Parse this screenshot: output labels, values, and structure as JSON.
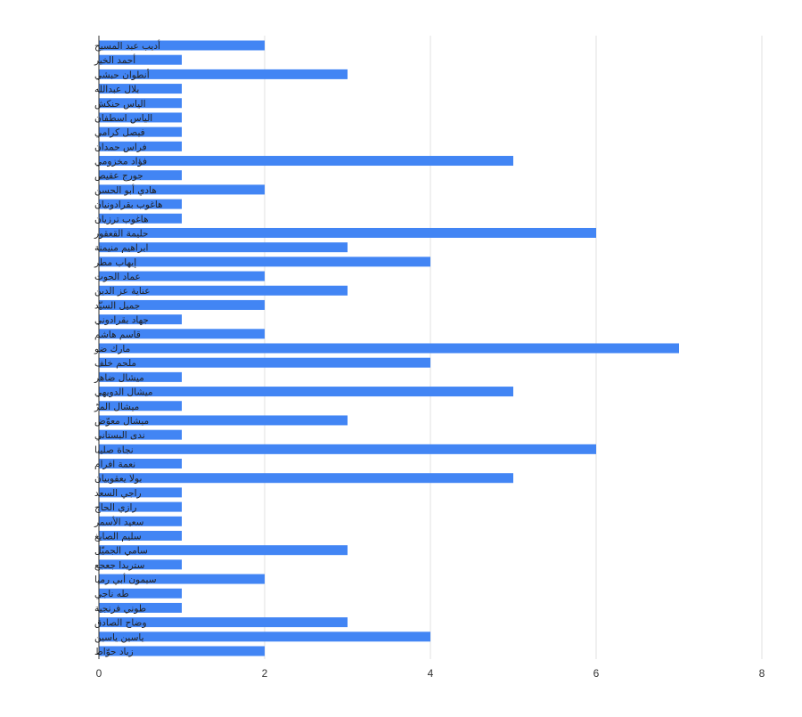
{
  "colors": {
    "bar": "#4285f4",
    "grid": "#e0e0e0",
    "axis": "#333333",
    "text": "#222222"
  },
  "chart_data": {
    "type": "bar",
    "orientation": "horizontal",
    "title": "",
    "xlabel": "",
    "ylabel": "",
    "xlim": [
      0,
      8
    ],
    "x_ticks": [
      0,
      2,
      4,
      6,
      8
    ],
    "grid": "vertical",
    "legend": "none",
    "categories": [
      "أديب عبد المسيح",
      "أحمد الخير",
      "أنطوان حبشي",
      "بلال عبدالله",
      "الياس حنكش",
      "الياس اسطفان",
      "فيصل كرامي",
      "فراس حمدان",
      "فؤاد مخزومي",
      "جورج عقيص",
      "هادي أبو الحسن",
      "هاغوب بقرادونيان",
      "هاغوب ترزيان",
      "حليمة القعقور",
      "ابراهيم منيمنة",
      "إيهاب مطر",
      "عماد الحوت",
      "عناية عز الدين",
      "جميل السيّد",
      "جهاد بقرادوني",
      "قاسم هاشم",
      "مارك ضو",
      "ملحم خلف",
      "ميشال ضاهر",
      "ميشال الدويهي",
      "ميشال المرّ",
      "ميشال معوّض",
      "ندى البستاني",
      "نجاة صليبا",
      "نعمة افرام",
      "بولا يعقوبيان",
      "راجي السعد",
      "رازي الحاج",
      "سعيد الأسمر",
      "سليم الصايغ",
      "سامي الجميّل",
      "ستريدا جعجع",
      "سيمون أبي رميا",
      "طه ناجي",
      "طوني فرنجية",
      "وضاح الصادق",
      "ياسين ياسين",
      "زياد حوّاط"
    ],
    "values": [
      2,
      1,
      3,
      1,
      1,
      1,
      1,
      1,
      5,
      1,
      2,
      1,
      1,
      6,
      3,
      4,
      2,
      3,
      2,
      1,
      2,
      7,
      4,
      1,
      5,
      1,
      3,
      1,
      6,
      1,
      5,
      1,
      1,
      1,
      1,
      3,
      1,
      2,
      1,
      1,
      3,
      4,
      2
    ]
  }
}
